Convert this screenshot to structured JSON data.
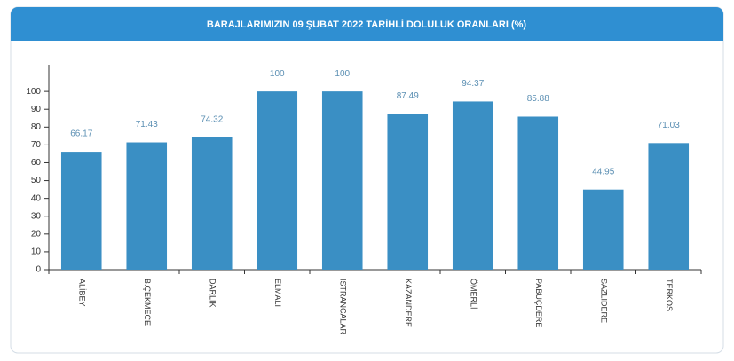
{
  "chart_data": {
    "type": "bar",
    "title": "BARAJLARIMIZIN 09 ŞUBAT 2022 TARİHLİ DOLULUK ORANLARI (%)",
    "categories": [
      "ALİBEY",
      "B.ÇEKMECE",
      "DARLIK",
      "ELMALI",
      "ISTRANCALAR",
      "KAZANDERE",
      "ÖMERLİ",
      "PABUÇDERE",
      "SAZLIDERE",
      "TERKOS"
    ],
    "values": [
      66.17,
      71.43,
      74.32,
      100,
      100,
      87.49,
      94.37,
      85.88,
      44.95,
      71.03
    ],
    "color": "#3a8fc4",
    "ylim": [
      0,
      115
    ],
    "yticks": [
      0,
      10,
      20,
      30,
      40,
      50,
      60,
      70,
      80,
      90,
      100
    ],
    "grid": false
  }
}
